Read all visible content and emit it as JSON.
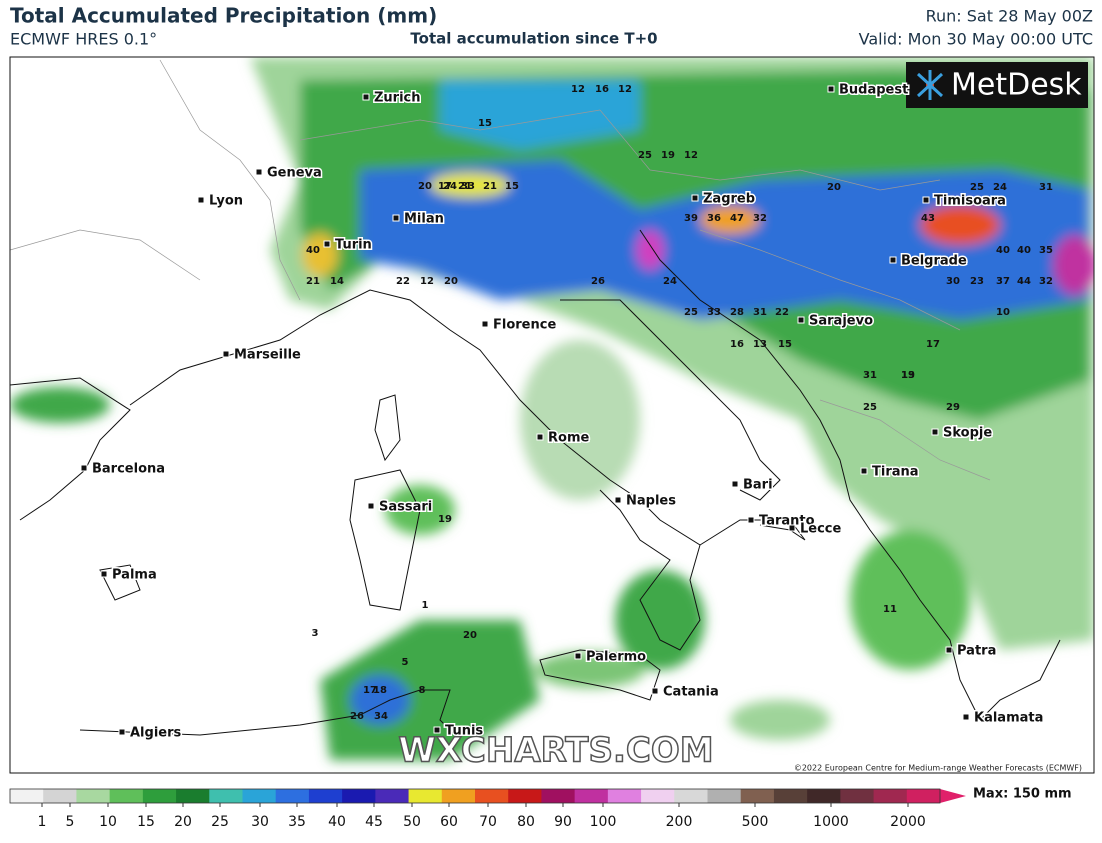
{
  "header": {
    "title": "Total Accumulated Precipitation (mm)",
    "model": "ECMWF HRES 0.1°",
    "subtitle": "Total accumulation since T+0",
    "run": "Run: Sat 28 May 00Z",
    "valid": "Valid: Mon 30 May 00:00 UTC"
  },
  "brand": "MetDesk",
  "watermark": "WXCHARTS.COM",
  "copyright": "©2022 European Centre for Medium-range Weather Forecasts (ECMWF)",
  "max_label": "Max: 150 mm",
  "cities": [
    "Zurich",
    "Budapest",
    "Geneva",
    "Lyon",
    "Zagreb",
    "Timisoara",
    "Milan",
    "Turin",
    "Belgrade",
    "Florence",
    "Sarajevo",
    "Marseille",
    "Rome",
    "Skopje",
    "Barcelona",
    "Tirana",
    "Bari",
    "Naples",
    "Sassari",
    "Taranto",
    "Lecce",
    "Palma",
    "Patra",
    "Palermo",
    "Catania",
    "Kalamata",
    "Algiers",
    "Tunis"
  ],
  "point_values": [
    12,
    16,
    12,
    21,
    17,
    15,
    20,
    24,
    33,
    21,
    15,
    25,
    19,
    12,
    40,
    21,
    14,
    22,
    12,
    20,
    39,
    36,
    47,
    32,
    20,
    25,
    24,
    31,
    43,
    40,
    40,
    35,
    26,
    24,
    30,
    23,
    37,
    44,
    32,
    25,
    33,
    28,
    31,
    22,
    16,
    13,
    17,
    10,
    15,
    19,
    17,
    18,
    26,
    34,
    31,
    13,
    29,
    25,
    19,
    11,
    20,
    8,
    5,
    3,
    1
  ],
  "colorbar": {
    "ticks": [
      1,
      5,
      10,
      15,
      20,
      25,
      30,
      35,
      40,
      45,
      50,
      60,
      70,
      80,
      90,
      100,
      200,
      500,
      1000,
      2000
    ],
    "colors": [
      "#f2f2f2",
      "#d4d4d4",
      "#a8d8a0",
      "#5fbf5a",
      "#2e9e3c",
      "#1a7d2e",
      "#3fbfae",
      "#2aa4d8",
      "#2d6fe0",
      "#1e3fd0",
      "#1a1ab0",
      "#4a2ab8",
      "#e8e830",
      "#f0a020",
      "#e85020",
      "#c81818",
      "#a01060",
      "#c030a0",
      "#e080e0",
      "#f0d0f0",
      "#d8d8d8",
      "#b0b0b0",
      "#806050",
      "#584038",
      "#402828",
      "#703040",
      "#a02850",
      "#d02060"
    ]
  }
}
